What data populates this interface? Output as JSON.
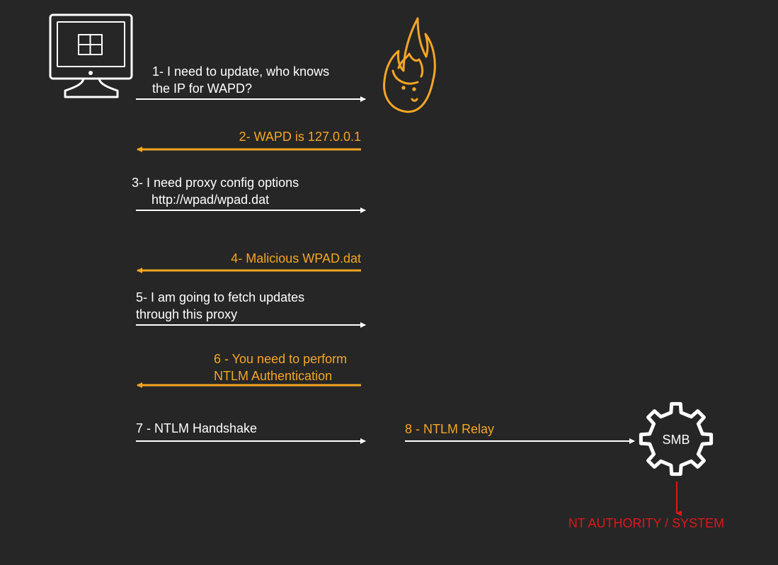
{
  "colors": {
    "background": "#262626",
    "white": "#ffffff",
    "orange": "#f5a623",
    "red": "#e0161a"
  },
  "icons": {
    "victim": "windows-monitor-icon",
    "attacker": "flame-icon",
    "server": "gear-icon"
  },
  "steps": [
    {
      "lines": [
        "1- I need to update, who knows",
        "the IP for WAPD?"
      ],
      "direction": "right",
      "color": "white"
    },
    {
      "lines": [
        "2- WAPD is 127.0.0.1"
      ],
      "direction": "left",
      "color": "orange"
    },
    {
      "lines": [
        "3- I need proxy config options",
        "http://wpad/wpad.dat"
      ],
      "direction": "right",
      "color": "white"
    },
    {
      "lines": [
        "4- Malicious WPAD.dat"
      ],
      "direction": "left",
      "color": "orange"
    },
    {
      "lines": [
        "5- I am going to fetch updates",
        "through this proxy"
      ],
      "direction": "right",
      "color": "white"
    },
    {
      "lines": [
        "6 - You need to perform",
        "NTLM Authentication"
      ],
      "direction": "left",
      "color": "orange"
    },
    {
      "lines": [
        "7 - NTLM Handshake"
      ],
      "direction": "right",
      "color": "white"
    },
    {
      "lines": [
        "8 - NTLM Relay"
      ],
      "direction": "right",
      "color": "white"
    }
  ],
  "smb_label": "SMB",
  "result_label": "NT AUTHORITY / SYSTEM"
}
